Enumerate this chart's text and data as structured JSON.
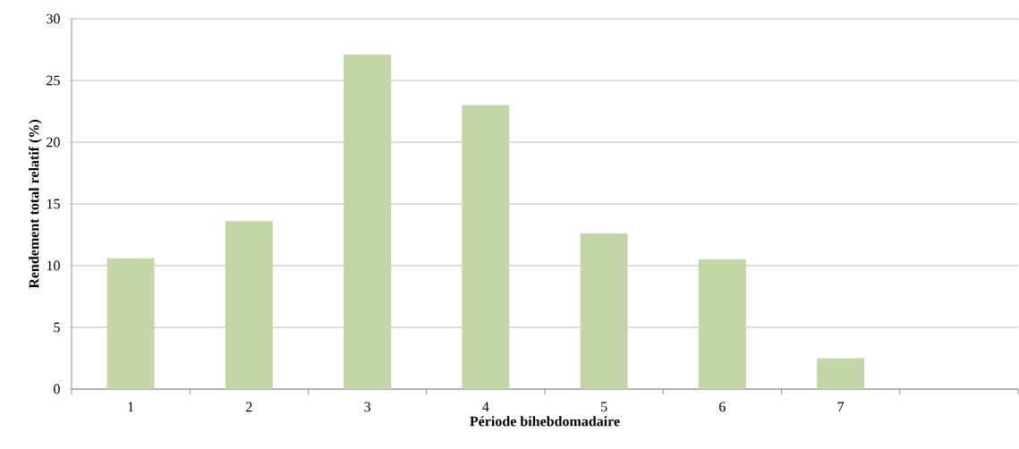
{
  "chart_data": {
    "type": "bar",
    "xlabel": "Période bihebdomadaire",
    "ylabel": "Rendement total relatif (%)",
    "categories": [
      "1",
      "2",
      "3",
      "4",
      "5",
      "6",
      "7",
      null
    ],
    "values": [
      10.6,
      13.6,
      27.1,
      23.0,
      12.6,
      10.5,
      2.5,
      null
    ],
    "color": "#c4d6a8",
    "ylim": [
      0,
      30
    ],
    "yticks": [
      0,
      5,
      10,
      15,
      20,
      25,
      30
    ],
    "grid": "y"
  }
}
